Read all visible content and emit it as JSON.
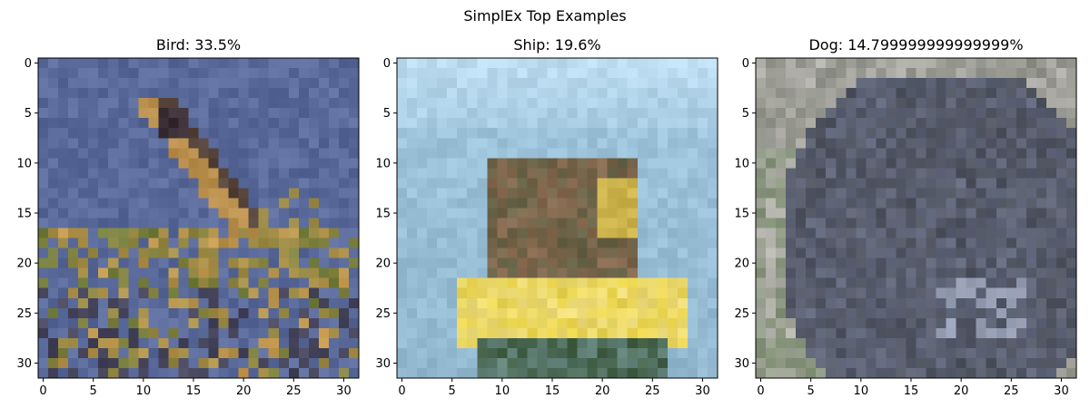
{
  "figure_title": "SimplEx Top Examples",
  "chart_data": [
    {
      "type": "image",
      "title": "Bird: 33.5%",
      "xlim": [
        -0.5,
        31.5
      ],
      "ylim": [
        31.5,
        -0.5
      ],
      "xticks": [
        0,
        5,
        10,
        15,
        20,
        25,
        30
      ],
      "yticks": [
        0,
        5,
        10,
        15,
        20,
        25,
        30
      ],
      "palette": {
        "background": "#5a6a9a",
        "subject": "#c89a50",
        "dark": "#3a2e34",
        "accent": "#6d7a3a"
      }
    },
    {
      "type": "image",
      "title": "Ship: 19.6%",
      "xlim": [
        -0.5,
        31.5
      ],
      "ylim": [
        31.5,
        -0.5
      ],
      "xticks": [
        0,
        5,
        10,
        15,
        20,
        25,
        30
      ],
      "yticks": [
        0,
        5,
        10,
        15,
        20,
        25,
        30
      ],
      "palette": {
        "sky": "#bcdcf0",
        "water": "#9ec4dc",
        "boat": "#e8d24a",
        "crew": "#8a6a50",
        "dark": "#3e5a3e"
      }
    },
    {
      "type": "image",
      "title": "Dog: 14.799999999999999%",
      "xlim": [
        -0.5,
        31.5
      ],
      "ylim": [
        31.5,
        -0.5
      ],
      "xticks": [
        0,
        5,
        10,
        15,
        20,
        25,
        30
      ],
      "yticks": [
        0,
        5,
        10,
        15,
        20,
        25,
        30
      ],
      "palette": {
        "fur": "#4e525e",
        "background": "#8e9088",
        "light": "#b8b6b0",
        "highlight": "#8a96b8",
        "plant": "#7a8a6e"
      }
    }
  ]
}
